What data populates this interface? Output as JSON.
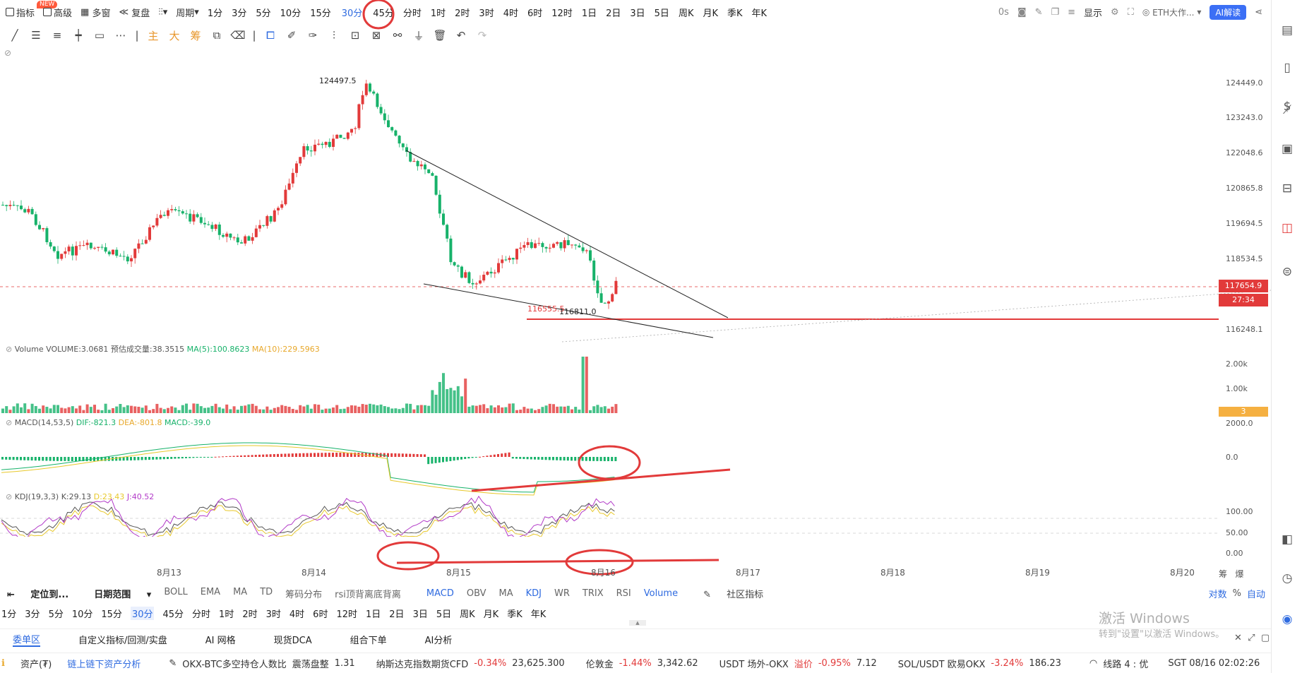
{
  "topbar": {
    "indicator": "指标",
    "new_badge": "NEW",
    "advanced": "高级",
    "multiwin": "多窗",
    "replay": "复盘",
    "period": "周期",
    "intervals": [
      "1分",
      "3分",
      "5分",
      "10分",
      "15分",
      "30分",
      "45分",
      "分时",
      "1时",
      "2时",
      "3时",
      "4时",
      "6时",
      "12时",
      "1日",
      "2日",
      "3日",
      "5日",
      "周K",
      "月K",
      "季K",
      "年K"
    ],
    "active_interval": "30分",
    "countdown": "0s",
    "display": "显示",
    "symbol": "ETH大作...",
    "ai_button": "AI解读"
  },
  "drawbar": {
    "main": "主",
    "big": "大",
    "chip": "筹"
  },
  "price_axis": {
    "ticks": [
      "124449.0",
      "123243.0",
      "122048.6",
      "120865.8",
      "119694.5",
      "118534.5",
      "116248.1"
    ],
    "current_price": "117654.9",
    "countdown": "27:34"
  },
  "chart": {
    "high_label": "124497.5",
    "low_label_red": "116555.5",
    "low_label": "116811.0"
  },
  "volume": {
    "header": "Volume",
    "vol": "VOLUME:3.0681",
    "est": "预估成交量:38.3515",
    "ma5": "MA(5):100.8623",
    "ma10": "MA(10):229.5963",
    "axis": [
      "2.00k",
      "1.00k"
    ],
    "tag": "3"
  },
  "macd": {
    "header": "MACD(14,53,5)",
    "dif": "DIF:-821.3",
    "dea": "DEA:-801.8",
    "macd": "MACD:-39.0",
    "axis": [
      "2000.0",
      "0.0"
    ]
  },
  "kdj": {
    "header": "KDJ(19,3,3)",
    "k": "K:29.13",
    "d": "D:23.43",
    "j": "J:40.52",
    "axis": [
      "100.00",
      "50.00",
      "0.00"
    ]
  },
  "dates": [
    "8月13",
    "8月14",
    "8月15",
    "8月16",
    "8月17",
    "8月18",
    "8月19",
    "8月20"
  ],
  "indicator_bar": {
    "locate": "定位到...",
    "date_range": "日期范围",
    "main_inds": [
      "BOLL",
      "EMA",
      "MA",
      "TD",
      "筹码分布",
      "rsi顶背离底背离"
    ],
    "sub_inds": [
      "MACD",
      "OBV",
      "MA",
      "KDJ",
      "WR",
      "TRIX",
      "RSI",
      "Volume"
    ],
    "community": "社区指标",
    "log": "对数",
    "percent": "%",
    "auto": "自动"
  },
  "interval_bar": [
    "1分",
    "3分",
    "5分",
    "10分",
    "15分",
    "30分",
    "45分",
    "分时",
    "1时",
    "2时",
    "3时",
    "4时",
    "6时",
    "12时",
    "1日",
    "2日",
    "3日",
    "5日",
    "周K",
    "月K",
    "季K",
    "年K"
  ],
  "tabs": [
    "委单区",
    "自定义指标/回测/实盘",
    "AI 网格",
    "现货DCA",
    "组合下单",
    "AI分析"
  ],
  "ticker": {
    "assets": "资产(₮)",
    "onchain": "链上链下资产分析",
    "item1": "OKX-BTC多空持仓人数比",
    "item1_state": "震荡盘整",
    "item1_val": "1.31",
    "item2": "纳斯达克指数期货CFD",
    "item2_chg": "-0.34%",
    "item2_val": "23,625.300",
    "item3": "伦敦金",
    "item3_chg": "-1.44%",
    "item3_val": "3,342.62",
    "item4": "USDT 场外-OKX",
    "item4_lbl": "溢价",
    "item4_chg": "-0.95%",
    "item4_val": "7.12",
    "item5": "SOL/USDT 欧易OKX",
    "item5_chg": "-3.24%",
    "item5_val": "186.23",
    "line": "线路 4 : 优",
    "time": "SGT 08/16 02:02:26"
  },
  "watermark": {
    "title": "激活 Windows",
    "sub": "转到\"设置\"以激活 Windows。"
  },
  "colors": {
    "up": "#e23a3a",
    "down": "#17b26a",
    "accent": "#2f6be0"
  }
}
